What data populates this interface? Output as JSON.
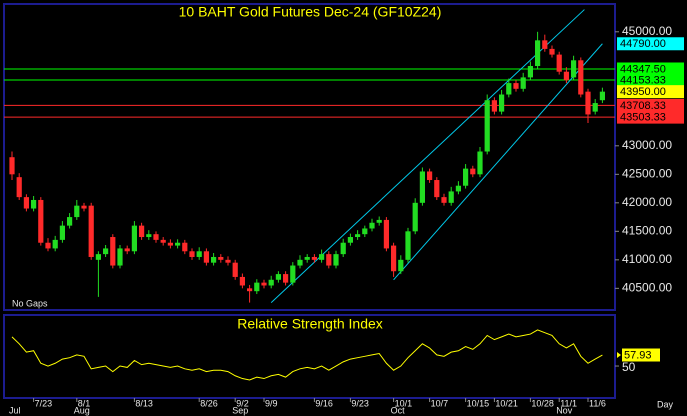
{
  "chart_data": [
    {
      "type": "candlestick",
      "title": "10 BAHT  Gold Futures Dec-24  (GF10Z24)",
      "categories": [
        null,
        null,
        null,
        "7/23",
        null,
        null,
        null,
        null,
        null,
        "8/1",
        null,
        null,
        null,
        null,
        null,
        null,
        null,
        "8/13",
        null,
        null,
        null,
        null,
        null,
        null,
        null,
        null,
        "8/26",
        null,
        null,
        null,
        null,
        "9/2",
        null,
        null,
        null,
        "9/9",
        null,
        null,
        null,
        null,
        null,
        null,
        "9/16",
        null,
        null,
        null,
        null,
        "9/23",
        null,
        null,
        null,
        null,
        null,
        "10/1",
        null,
        null,
        null,
        null,
        "10/7",
        null,
        null,
        null,
        null,
        "10/15",
        null,
        null,
        null,
        "10/21",
        null,
        null,
        null,
        null,
        "10/28",
        null,
        null,
        null,
        "11/1",
        null,
        null,
        null,
        "11/6",
        null,
        null
      ],
      "months": [
        "Jul",
        null,
        null,
        null,
        null,
        null,
        null,
        null,
        null,
        "Aug",
        null,
        null,
        null,
        null,
        null,
        null,
        null,
        null,
        null,
        null,
        null,
        null,
        null,
        null,
        null,
        null,
        null,
        null,
        null,
        null,
        null,
        "Sep",
        null,
        null,
        null,
        null,
        null,
        null,
        null,
        null,
        null,
        null,
        null,
        null,
        null,
        null,
        null,
        null,
        null,
        null,
        null,
        null,
        null,
        "Oct",
        null,
        null,
        null,
        null,
        null,
        null,
        null,
        null,
        null,
        null,
        null,
        null,
        null,
        null,
        null,
        null,
        null,
        null,
        null,
        null,
        null,
        null,
        "Nov",
        null,
        null,
        null,
        null,
        null,
        null
      ],
      "open": [
        42800,
        42450,
        42100,
        41900,
        42050,
        41300,
        41200,
        41350,
        41600,
        41750,
        41950,
        41950,
        41000,
        41100,
        41400,
        40900,
        41200,
        41150,
        41600,
        41400,
        41450,
        41350,
        41300,
        41250,
        41300,
        41150,
        41050,
        41150,
        40950,
        41050,
        41000,
        40950,
        40700,
        40500,
        40450,
        40600,
        40550,
        40650,
        40750,
        40600,
        40900,
        41000,
        41050,
        41000,
        41100,
        40900,
        41100,
        41300,
        41400,
        41450,
        41550,
        41650,
        41700,
        41250,
        40800,
        41000,
        41500,
        42000,
        42550,
        42400,
        42100,
        42000,
        42200,
        42300,
        42600,
        42500,
        42900,
        43800,
        43600,
        43900,
        44100,
        44000,
        44200,
        44400,
        44850,
        44700,
        44600,
        44300,
        44200,
        44500,
        43950,
        43600,
        43800
      ],
      "high": [
        42900,
        42520,
        42150,
        42120,
        42100,
        41380,
        41420,
        41680,
        41820,
        42050,
        42000,
        42000,
        41150,
        41260,
        41450,
        41260,
        41250,
        41680,
        41650,
        41520,
        41500,
        41400,
        41360,
        41360,
        41350,
        41200,
        41220,
        41200,
        41120,
        41100,
        41060,
        41000,
        40760,
        40560,
        40660,
        40650,
        40720,
        40800,
        40800,
        40960,
        41080,
        41100,
        41100,
        41180,
        41150,
        41160,
        41370,
        41460,
        41520,
        41600,
        41720,
        41760,
        41750,
        41300,
        41080,
        41560,
        42080,
        42620,
        42600,
        42450,
        42160,
        42280,
        42380,
        42680,
        42650,
        42980,
        43900,
        43850,
        43980,
        44180,
        44150,
        44280,
        44480,
        45000,
        44950,
        44760,
        44650,
        44380,
        44580,
        44550,
        44000,
        43820,
        44020
      ],
      "low": [
        42400,
        42050,
        41850,
        41850,
        41250,
        41150,
        41150,
        41300,
        41550,
        41700,
        41850,
        41000,
        40350,
        41050,
        40850,
        40850,
        41100,
        41100,
        41350,
        41350,
        41300,
        41250,
        41200,
        41200,
        41100,
        41000,
        41000,
        40900,
        40900,
        40950,
        40900,
        40650,
        40500,
        40250,
        40400,
        40500,
        40500,
        40600,
        40550,
        40550,
        40850,
        40950,
        40950,
        40950,
        40850,
        40850,
        41050,
        41250,
        41350,
        41400,
        41500,
        41600,
        41150,
        40700,
        40750,
        40950,
        41450,
        41950,
        42350,
        42050,
        41950,
        41950,
        42150,
        42250,
        42450,
        42450,
        42850,
        43550,
        43550,
        43850,
        43950,
        43950,
        44150,
        44350,
        44650,
        44550,
        44250,
        44100,
        44150,
        43850,
        43400,
        43550,
        43750
      ],
      "close": [
        42500,
        42100,
        41900,
        42050,
        41300,
        41200,
        41350,
        41600,
        41750,
        41950,
        41900,
        41050,
        41100,
        41200,
        40900,
        41200,
        41150,
        41600,
        41400,
        41450,
        41350,
        41300,
        41250,
        41300,
        41150,
        41050,
        41150,
        40950,
        41050,
        41000,
        40950,
        40700,
        40550,
        40450,
        40600,
        40550,
        40650,
        40750,
        40600,
        40900,
        41000,
        41050,
        41000,
        41100,
        40900,
        41100,
        41300,
        41400,
        41450,
        41550,
        41650,
        41700,
        41200,
        40800,
        41000,
        41500,
        42000,
        42550,
        42400,
        42100,
        42000,
        42200,
        42300,
        42600,
        42500,
        42900,
        43800,
        43600,
        43900,
        44100,
        44000,
        44200,
        44400,
        44850,
        44700,
        44600,
        44300,
        44150,
        44500,
        43900,
        43550,
        43750,
        43950
      ],
      "up_color": "#22dd22",
      "down_color": "#ff2a2a",
      "ylim": [
        40120,
        45470
      ],
      "yticks": [
        {
          "value": 45000,
          "label": "45000.00"
        },
        {
          "value": 43000,
          "label": "43000.00"
        },
        {
          "value": 42500,
          "label": "42500.00"
        },
        {
          "value": 42000,
          "label": "42000.00"
        },
        {
          "value": 41500,
          "label": "41500.00"
        },
        {
          "value": 41000,
          "label": "41000.00"
        },
        {
          "value": 40500,
          "label": "40500.00"
        }
      ],
      "horizontal_lines": [
        {
          "value": 44347.5,
          "label": "44347.50",
          "color": "#00ff00"
        },
        {
          "value": 44153.33,
          "label": "44153.33",
          "color": "#00ff00"
        },
        {
          "value": 43708.33,
          "label": "43708.33",
          "color": "#ff2a2a"
        },
        {
          "value": 43503.33,
          "label": "43503.33",
          "color": "#ff2a2a"
        }
      ],
      "price_labels": [
        {
          "value": 44790,
          "label": "44790.00",
          "color": "#00ffff"
        },
        {
          "value": 43950,
          "label": "43950.00",
          "color": "#ffff00"
        }
      ],
      "channel_lines": [
        {
          "x": [
            36,
            79.5
          ],
          "y": [
            40250,
            45390
          ]
        },
        {
          "x": [
            53,
            82
          ],
          "y": [
            40650,
            44790
          ]
        }
      ],
      "channel_color": "#00c8e8",
      "annotation": "No Gaps",
      "period": "Day"
    },
    {
      "type": "line",
      "title": "Relative Strength Index",
      "values": [
        71,
        66,
        60,
        61,
        52,
        50,
        52,
        55,
        56,
        58,
        57,
        48,
        49,
        50,
        46,
        50,
        49,
        54,
        51,
        52,
        51,
        50,
        49,
        50,
        48,
        47,
        48,
        46,
        47,
        47,
        46,
        43,
        41,
        40,
        42,
        41,
        43,
        44,
        42,
        46,
        48,
        49,
        48,
        50,
        47,
        50,
        53,
        55,
        56,
        57,
        58,
        59,
        52,
        47,
        50,
        56,
        61,
        66,
        63,
        58,
        57,
        60,
        61,
        64,
        62,
        66,
        72,
        69,
        71,
        73,
        71,
        72,
        73,
        76,
        74,
        72,
        66,
        63,
        66,
        57,
        52,
        55,
        57.93
      ],
      "color": "#ffff00",
      "ylim": [
        27,
        86
      ],
      "yticks": [
        50
      ]
    }
  ]
}
